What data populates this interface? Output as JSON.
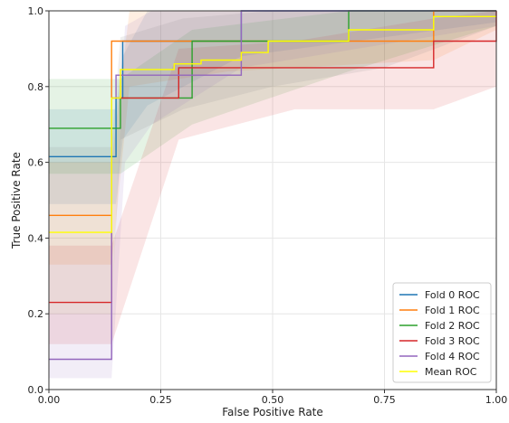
{
  "chart_data": {
    "type": "line",
    "title": "",
    "xlabel": "False Positive Rate",
    "ylabel": "True Positive Rate",
    "xlim": [
      0.0,
      1.0
    ],
    "ylim": [
      0.0,
      1.0
    ],
    "xticks": [
      0.0,
      0.25,
      0.5,
      0.75,
      1.0
    ],
    "xtick_labels": [
      "0.00",
      "0.25",
      "0.50",
      "0.75",
      "1.00"
    ],
    "yticks": [
      0.0,
      0.2,
      0.4,
      0.6,
      0.8,
      1.0
    ],
    "ytick_labels": [
      "0.0",
      "0.2",
      "0.4",
      "0.6",
      "0.8",
      "1.0"
    ],
    "grid": true,
    "legend_position": "bottom-right",
    "series": [
      {
        "name": "Fold 0 ROC",
        "color": "#1f77b4",
        "x": [
          0.0,
          0.15,
          0.15,
          0.165,
          0.165,
          0.43,
          0.43,
          1.0
        ],
        "y": [
          0.615,
          0.615,
          0.77,
          0.77,
          0.92,
          0.92,
          1.0,
          1.0
        ]
      },
      {
        "name": "Fold 1 ROC",
        "color": "#ff7f0e",
        "x": [
          0.0,
          0.14,
          0.14,
          0.86,
          0.86,
          1.0
        ],
        "y": [
          0.46,
          0.46,
          0.92,
          0.92,
          1.0,
          1.0
        ]
      },
      {
        "name": "Fold 2 ROC",
        "color": "#2ca02c",
        "x": [
          0.0,
          0.16,
          0.16,
          0.32,
          0.32,
          0.67,
          0.67,
          1.0
        ],
        "y": [
          0.69,
          0.69,
          0.77,
          0.77,
          0.92,
          0.92,
          1.0,
          1.0
        ]
      },
      {
        "name": "Fold 3 ROC",
        "color": "#d62728",
        "x": [
          0.0,
          0.14,
          0.14,
          0.29,
          0.29,
          0.86,
          0.86,
          1.0,
          1.0
        ],
        "y": [
          0.23,
          0.23,
          0.77,
          0.77,
          0.85,
          0.85,
          0.92,
          0.92,
          1.0
        ]
      },
      {
        "name": "Fold 4 ROC",
        "color": "#9467bd",
        "x": [
          0.0,
          0.14,
          0.14,
          0.15,
          0.15,
          0.43,
          0.43,
          1.0
        ],
        "y": [
          0.08,
          0.08,
          0.77,
          0.77,
          0.83,
          0.83,
          1.0,
          1.0
        ]
      },
      {
        "name": "Mean ROC",
        "color": "#ffff00",
        "x": [
          0.0,
          0.14,
          0.14,
          0.16,
          0.16,
          0.28,
          0.28,
          0.34,
          0.34,
          0.43,
          0.43,
          0.49,
          0.49,
          0.67,
          0.67,
          0.86,
          0.86,
          1.0
        ],
        "y": [
          0.415,
          0.415,
          0.77,
          0.77,
          0.845,
          0.845,
          0.86,
          0.86,
          0.87,
          0.87,
          0.89,
          0.89,
          0.92,
          0.92,
          0.95,
          0.95,
          0.985,
          0.985
        ]
      }
    ],
    "bands": [
      {
        "series": "Fold 0 ROC",
        "color": "#1f77b4",
        "x": [
          0.0,
          0.15,
          0.165,
          0.22,
          0.43,
          1.0
        ],
        "lower": [
          0.49,
          0.49,
          0.66,
          0.75,
          0.88,
          0.97
        ],
        "upper": [
          0.74,
          0.74,
          0.88,
          1.0,
          1.0,
          1.0
        ]
      },
      {
        "series": "Fold 1 ROC",
        "color": "#ff7f0e",
        "x": [
          0.0,
          0.14,
          0.18,
          0.4,
          0.86,
          1.0
        ],
        "lower": [
          0.33,
          0.33,
          0.8,
          0.84,
          0.87,
          0.95
        ],
        "upper": [
          0.6,
          0.6,
          1.0,
          1.0,
          1.0,
          1.0
        ]
      },
      {
        "series": "Fold 2 ROC",
        "color": "#2ca02c",
        "x": [
          0.0,
          0.16,
          0.32,
          0.67,
          1.0
        ],
        "lower": [
          0.57,
          0.57,
          0.7,
          0.84,
          0.96
        ],
        "upper": [
          0.82,
          0.82,
          0.95,
          1.0,
          1.0
        ]
      },
      {
        "series": "Fold 3 ROC",
        "color": "#d62728",
        "x": [
          0.0,
          0.14,
          0.29,
          0.55,
          0.86,
          1.0
        ],
        "lower": [
          0.12,
          0.12,
          0.66,
          0.74,
          0.74,
          0.8
        ],
        "upper": [
          0.38,
          0.38,
          0.9,
          0.92,
          0.98,
          1.0
        ]
      },
      {
        "series": "Fold 4 ROC",
        "color": "#9467bd",
        "x": [
          0.0,
          0.14,
          0.17,
          0.23,
          0.43,
          1.0
        ],
        "lower": [
          0.03,
          0.03,
          0.6,
          0.7,
          0.85,
          0.96
        ],
        "upper": [
          0.2,
          0.2,
          0.96,
          1.0,
          1.0,
          1.0
        ]
      },
      {
        "series": "Mean ROC",
        "color": "#7f7f7f",
        "x": [
          0.0,
          0.14,
          0.16,
          0.3,
          0.5,
          0.75,
          1.0
        ],
        "lower": [
          0.2,
          0.2,
          0.66,
          0.74,
          0.8,
          0.85,
          0.96
        ],
        "upper": [
          0.64,
          0.64,
          0.93,
          0.98,
          1.0,
          1.0,
          1.0
        ]
      }
    ]
  }
}
